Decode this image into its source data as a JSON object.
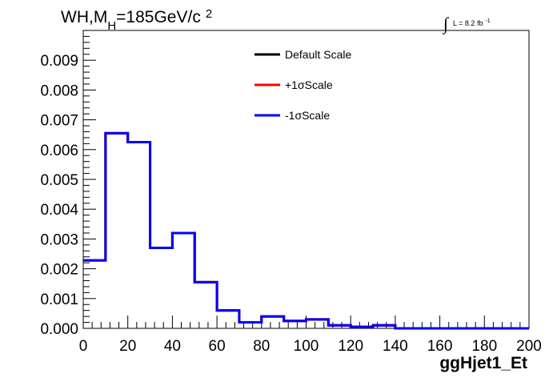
{
  "chart_data": {
    "type": "line",
    "title_parts": {
      "prefix": "WH,M",
      "subscript": "H",
      "value": "=185GeV/c",
      "superscript": "2"
    },
    "lumi_label": {
      "integral": "∫",
      "text": "L = 8.2 fb",
      "superscript": "-1"
    },
    "xlabel": "ggHjet1_Et",
    "ylabel": "",
    "xlim": [
      0,
      200
    ],
    "ylim": [
      0,
      0.01
    ],
    "x_ticks": [
      "0",
      "20",
      "40",
      "60",
      "80",
      "100",
      "120",
      "140",
      "160",
      "180",
      "200"
    ],
    "y_ticks": [
      "0.000",
      "0.001",
      "0.002",
      "0.003",
      "0.004",
      "0.005",
      "0.006",
      "0.007",
      "0.008",
      "0.009"
    ],
    "bin_edges": [
      0,
      10,
      20,
      30,
      40,
      50,
      60,
      70,
      80,
      90,
      100,
      110,
      120,
      130,
      140,
      150,
      160,
      170,
      180,
      190,
      200
    ],
    "legend_position": "top-right",
    "series": [
      {
        "name": "Default Scale",
        "color": "#000000",
        "values": [
          0.00228,
          0.00655,
          0.00625,
          0.0027,
          0.0032,
          0.00155,
          0.0006,
          0.0002,
          0.0004,
          0.00025,
          0.0003,
          0.0001,
          5e-05,
          0.0001,
          0.0,
          0.0,
          0.0,
          0.0,
          0.0,
          0.0
        ]
      },
      {
        "name": "+1σScale",
        "color": "#ff0000",
        "values": [
          0.00228,
          0.00655,
          0.00625,
          0.0027,
          0.0032,
          0.00155,
          0.0006,
          0.0002,
          0.0004,
          0.00025,
          0.0003,
          0.0001,
          5e-05,
          0.0001,
          0.0,
          0.0,
          0.0,
          0.0,
          0.0,
          0.0
        ]
      },
      {
        "name": "-1σScale",
        "color": "#0000ff",
        "values": [
          0.00228,
          0.00655,
          0.00625,
          0.0027,
          0.0032,
          0.00155,
          0.0006,
          0.0002,
          0.0004,
          0.00025,
          0.0003,
          0.0001,
          5e-05,
          0.0001,
          0.0,
          0.0,
          0.0,
          0.0,
          0.0,
          0.0
        ]
      }
    ]
  }
}
